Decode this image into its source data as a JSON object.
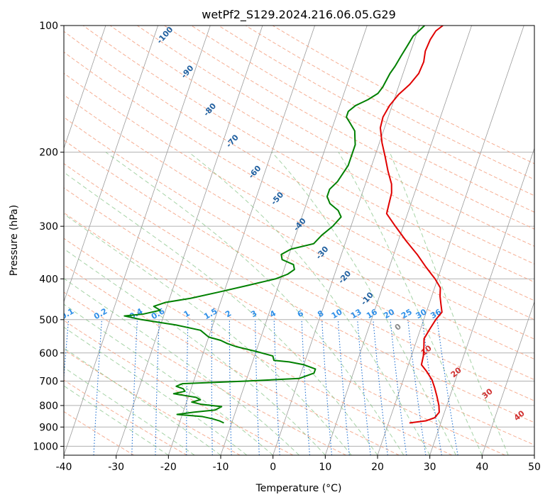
{
  "chart_data": {
    "type": "line",
    "title": "wetPf2_S129.2024.216.06.05.G29",
    "xlabel": "Temperature (°C)",
    "ylabel": "Pressure (hPa)",
    "xlim": [
      -40,
      50
    ],
    "ylim": [
      1050,
      100
    ],
    "y_scale": "log",
    "grid": true,
    "x_ticks": [
      "-40",
      "-30",
      "-20",
      "-10",
      "0",
      "10",
      "20",
      "30",
      "40",
      "50"
    ],
    "y_ticks": [
      "100",
      "200",
      "300",
      "400",
      "500",
      "600",
      "700",
      "800",
      "900",
      "1000"
    ],
    "series": [
      {
        "color": "#e00000",
        "points": [
          [
            24,
            880
          ],
          [
            27,
            870
          ],
          [
            28.5,
            855
          ],
          [
            29,
            830
          ],
          [
            28.5,
            800
          ],
          [
            27.5,
            760
          ],
          [
            26.5,
            725
          ],
          [
            25.5,
            695
          ],
          [
            24,
            665
          ],
          [
            22.5,
            640
          ],
          [
            22.3,
            610
          ],
          [
            21.8,
            580
          ],
          [
            21.3,
            555
          ],
          [
            21.8,
            525
          ],
          [
            22.3,
            500
          ],
          [
            23,
            480
          ],
          [
            22.3,
            460
          ],
          [
            21.6,
            440
          ],
          [
            21.1,
            420
          ],
          [
            19.5,
            400
          ],
          [
            17,
            375
          ],
          [
            14.5,
            350
          ],
          [
            11.5,
            325
          ],
          [
            8.5,
            300
          ],
          [
            6,
            280
          ],
          [
            5.8,
            265
          ],
          [
            5.6,
            250
          ],
          [
            5,
            238
          ],
          [
            3.5,
            222
          ],
          [
            2,
            205
          ],
          [
            0.5,
            190
          ],
          [
            -0.8,
            175
          ],
          [
            -1,
            165
          ],
          [
            -0.5,
            155
          ],
          [
            0.5,
            146
          ],
          [
            2,
            138
          ],
          [
            3,
            130
          ],
          [
            3.2,
            122
          ],
          [
            2.8,
            115
          ],
          [
            3,
            108
          ],
          [
            3.5,
            103
          ],
          [
            4.5,
            100
          ]
        ]
      },
      {
        "color": "#008000",
        "points": [
          [
            -11.5,
            880
          ],
          [
            -12.5,
            870
          ],
          [
            -14,
            860
          ],
          [
            -16,
            850
          ],
          [
            -21,
            840
          ],
          [
            -18,
            830
          ],
          [
            -14,
            820
          ],
          [
            -13,
            805
          ],
          [
            -17,
            795
          ],
          [
            -19,
            785
          ],
          [
            -17.5,
            775
          ],
          [
            -18.5,
            765
          ],
          [
            -20,
            760
          ],
          [
            -23,
            750
          ],
          [
            -21,
            740
          ],
          [
            -21.5,
            730
          ],
          [
            -23,
            720
          ],
          [
            -22,
            710
          ],
          [
            -10,
            700
          ],
          [
            0,
            690
          ],
          [
            2.5,
            670
          ],
          [
            2.5,
            655
          ],
          [
            0,
            640
          ],
          [
            -3,
            630
          ],
          [
            -6,
            625
          ],
          [
            -6.5,
            610
          ],
          [
            -10,
            595
          ],
          [
            -14,
            580
          ],
          [
            -16,
            570
          ],
          [
            -17.5,
            560
          ],
          [
            -20,
            550
          ],
          [
            -22,
            530
          ],
          [
            -27,
            515
          ],
          [
            -34,
            500
          ],
          [
            -37.5,
            490
          ],
          [
            -34,
            485
          ],
          [
            -31,
            475
          ],
          [
            -32.5,
            465
          ],
          [
            -30.5,
            455
          ],
          [
            -26,
            445
          ],
          [
            -21,
            430
          ],
          [
            -16,
            415
          ],
          [
            -11,
            400
          ],
          [
            -9,
            390
          ],
          [
            -8,
            380
          ],
          [
            -8.5,
            370
          ],
          [
            -11,
            360
          ],
          [
            -11.5,
            350
          ],
          [
            -10,
            340
          ],
          [
            -6,
            330
          ],
          [
            -5,
            315
          ],
          [
            -3.5,
            300
          ],
          [
            -2.5,
            285
          ],
          [
            -3.5,
            275
          ],
          [
            -5.5,
            265
          ],
          [
            -6.5,
            255
          ],
          [
            -6.5,
            245
          ],
          [
            -5.5,
            235
          ],
          [
            -5,
            225
          ],
          [
            -4.5,
            215
          ],
          [
            -4.5,
            200
          ],
          [
            -4.5,
            192
          ],
          [
            -5,
            185
          ],
          [
            -5.5,
            178
          ],
          [
            -7,
            170
          ],
          [
            -8,
            165
          ],
          [
            -8,
            160
          ],
          [
            -7,
            155
          ],
          [
            -5,
            150
          ],
          [
            -3.5,
            145
          ],
          [
            -3,
            140
          ],
          [
            -2.5,
            130
          ],
          [
            -2,
            125
          ],
          [
            -1.5,
            118
          ],
          [
            -1,
            112
          ],
          [
            -0.5,
            106
          ],
          [
            0.5,
            102
          ],
          [
            1,
            100
          ]
        ]
      }
    ],
    "dry_adiabat_labels": [
      "-100",
      "-90",
      "-80",
      "-70",
      "-60",
      "-50",
      "-40",
      "-30",
      "-20",
      "-10"
    ],
    "mixing_ratio_labels": [
      "0.1",
      "0.2",
      "0.4",
      "0.6",
      "1",
      "1.5",
      "2",
      "3",
      "4",
      "6",
      "8",
      "10",
      "13",
      "16",
      "20",
      "25",
      "30",
      "36"
    ],
    "moist_adiabat_labels": [
      "0",
      "10",
      "20",
      "30",
      "40"
    ],
    "colors": {
      "dry_adiabat": "#f5a080",
      "moist_adiabat": "#80c080",
      "mixing_ratio": "#1f6fd0",
      "isotherm": "#777777",
      "dry_label": "#1f5f9f",
      "mixing_label": "#3090e8",
      "moist_label": "#d03030",
      "zero_label": "#888888"
    }
  }
}
